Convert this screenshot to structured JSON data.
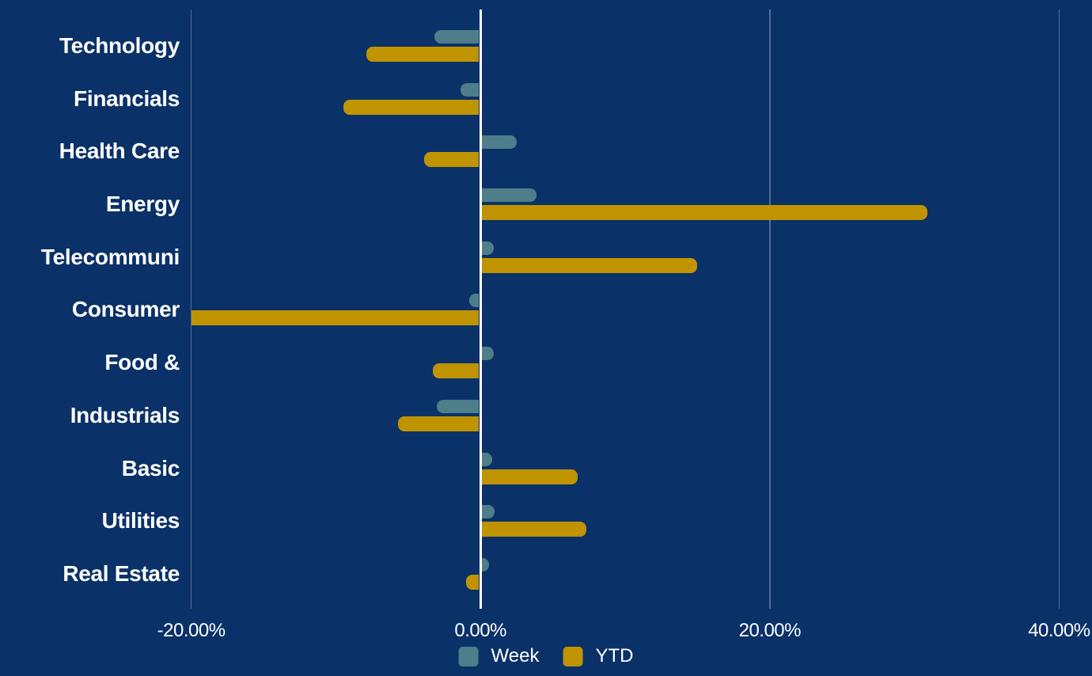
{
  "chart_data": {
    "type": "bar",
    "orientation": "horizontal",
    "categories": [
      "Technology",
      "Financials",
      "Health Care",
      "Energy",
      "Telecommuni",
      "Consumer",
      "Food &",
      "Industrials",
      "Basic",
      "Utilities",
      "Real Estate"
    ],
    "series": [
      {
        "name": "Week",
        "color": "#4D7E89",
        "values": [
          -3.2,
          -1.4,
          2.4,
          3.8,
          0.8,
          -0.8,
          0.8,
          -3.0,
          0.7,
          0.9,
          0.5
        ]
      },
      {
        "name": "YTD",
        "color": "#C09400",
        "values": [
          -7.9,
          -9.5,
          -3.9,
          30.8,
          14.9,
          -20.0,
          -3.3,
          -5.7,
          6.6,
          7.2,
          -1.0
        ]
      }
    ],
    "xlabel": "",
    "ylabel": "",
    "x_axis": {
      "min": -20,
      "max": 40,
      "ticks": [
        -20,
        0,
        20,
        40
      ],
      "tick_labels": [
        "-20.00%",
        "0.00%",
        "20.00%",
        "40.00%"
      ]
    },
    "legend": {
      "position": "bottom",
      "entries": [
        "Week",
        "YTD"
      ]
    },
    "grid": true,
    "background_color": "#0A3168",
    "zero_line_color": "#FFFFFF",
    "text_color": "#FFFFFF"
  }
}
